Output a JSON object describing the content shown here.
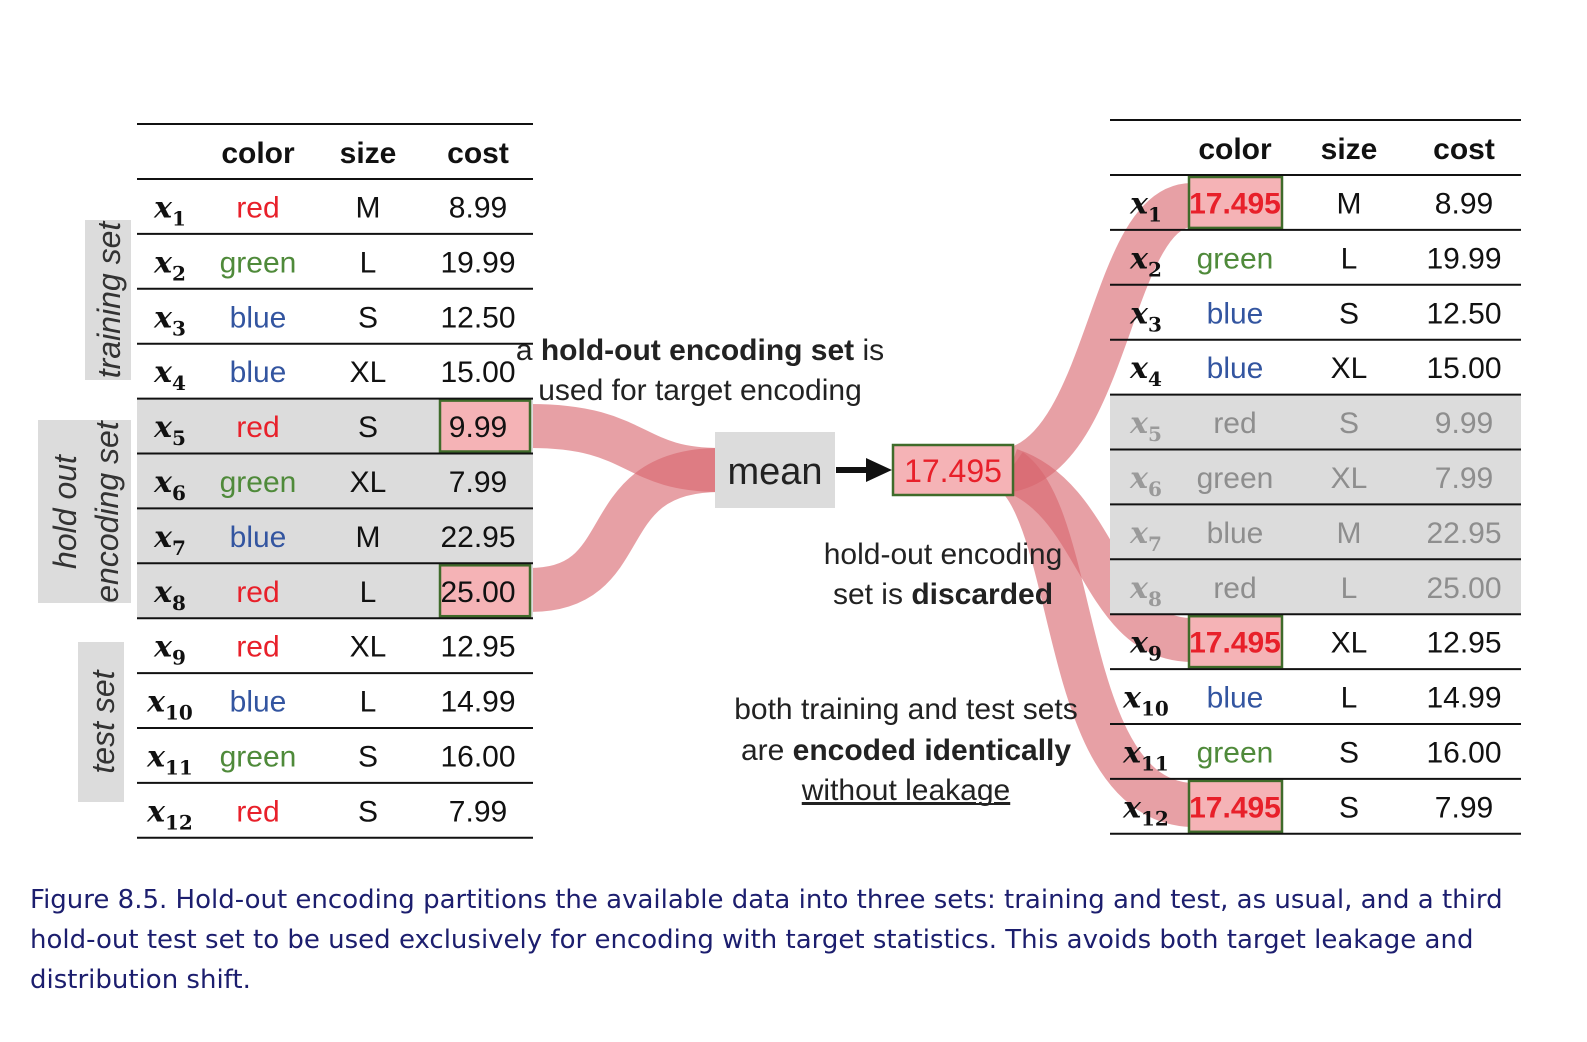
{
  "colors": {
    "red": "#e8202a",
    "green": "#4f8a3a",
    "blue": "#3355a0",
    "flow": "#d8666e",
    "highlight_fill": "#f5b3b6",
    "highlight_border": "#3f6b2a",
    "shade": "#dcdcdc",
    "caption": "#1c1e6e"
  },
  "left_table": {
    "headers": [
      "color",
      "size",
      "cost"
    ],
    "rows": [
      {
        "label": "x",
        "sub": "1",
        "color": "red",
        "size": "M",
        "cost": "8.99"
      },
      {
        "label": "x",
        "sub": "2",
        "color": "green",
        "size": "L",
        "cost": "19.99"
      },
      {
        "label": "x",
        "sub": "3",
        "color": "blue",
        "size": "S",
        "cost": "12.50"
      },
      {
        "label": "x",
        "sub": "4",
        "color": "blue",
        "size": "XL",
        "cost": "15.00"
      },
      {
        "label": "x",
        "sub": "5",
        "color": "red",
        "size": "S",
        "cost": "9.99"
      },
      {
        "label": "x",
        "sub": "6",
        "color": "green",
        "size": "XL",
        "cost": "7.99"
      },
      {
        "label": "x",
        "sub": "7",
        "color": "blue",
        "size": "M",
        "cost": "22.95"
      },
      {
        "label": "x",
        "sub": "8",
        "color": "red",
        "size": "L",
        "cost": "25.00"
      },
      {
        "label": "x",
        "sub": "9",
        "color": "red",
        "size": "XL",
        "cost": "12.95"
      },
      {
        "label": "x",
        "sub": "10",
        "color": "blue",
        "size": "L",
        "cost": "14.99"
      },
      {
        "label": "x",
        "sub": "11",
        "color": "green",
        "size": "S",
        "cost": "16.00"
      },
      {
        "label": "x",
        "sub": "12",
        "color": "red",
        "size": "S",
        "cost": "7.99"
      }
    ]
  },
  "set_labels": {
    "training": "training set",
    "holdout_line1": "hold out",
    "holdout_line2": "encoding set",
    "test": "test set"
  },
  "right_table": {
    "headers": [
      "color",
      "size",
      "cost"
    ],
    "rows": [
      {
        "label": "x",
        "sub": "1",
        "color": "17.495",
        "size": "M",
        "cost": "8.99"
      },
      {
        "label": "x",
        "sub": "2",
        "color": "green",
        "size": "L",
        "cost": "19.99"
      },
      {
        "label": "x",
        "sub": "3",
        "color": "blue",
        "size": "S",
        "cost": "12.50"
      },
      {
        "label": "x",
        "sub": "4",
        "color": "blue",
        "size": "XL",
        "cost": "15.00"
      },
      {
        "label": "x",
        "sub": "5",
        "color": "red",
        "size": "S",
        "cost": "9.99"
      },
      {
        "label": "x",
        "sub": "6",
        "color": "green",
        "size": "XL",
        "cost": "7.99"
      },
      {
        "label": "x",
        "sub": "7",
        "color": "blue",
        "size": "M",
        "cost": "22.95"
      },
      {
        "label": "x",
        "sub": "8",
        "color": "red",
        "size": "L",
        "cost": "25.00"
      },
      {
        "label": "x",
        "sub": "9",
        "color": "17.495",
        "size": "XL",
        "cost": "12.95"
      },
      {
        "label": "x",
        "sub": "10",
        "color": "blue",
        "size": "L",
        "cost": "14.99"
      },
      {
        "label": "x",
        "sub": "11",
        "color": "green",
        "size": "S",
        "cost": "16.00"
      },
      {
        "label": "x",
        "sub": "12",
        "color": "17.495",
        "size": "S",
        "cost": "7.99"
      }
    ]
  },
  "annotations": {
    "holdout_used_a": "a ",
    "holdout_used_bold": "hold-out encoding set",
    "holdout_used_is": " is",
    "holdout_used_line2": "used for target encoding",
    "mean_label": "mean",
    "mean_value": "17.495",
    "discarded_line1": "hold-out encoding",
    "discarded_line2a": "set is ",
    "discarded_line2b": "discarded",
    "both_line1": "both training and test sets",
    "both_line2a": "are ",
    "both_line2b": "encoded identically",
    "both_line3": "without leakage"
  },
  "caption": {
    "text": "Figure 8.5. Hold-out encoding partitions the available data into three sets: training and test, as usual, and a third hold-out test set to be used exclusively for encoding with target statistics. This avoids both target leakage and distribution shift."
  }
}
